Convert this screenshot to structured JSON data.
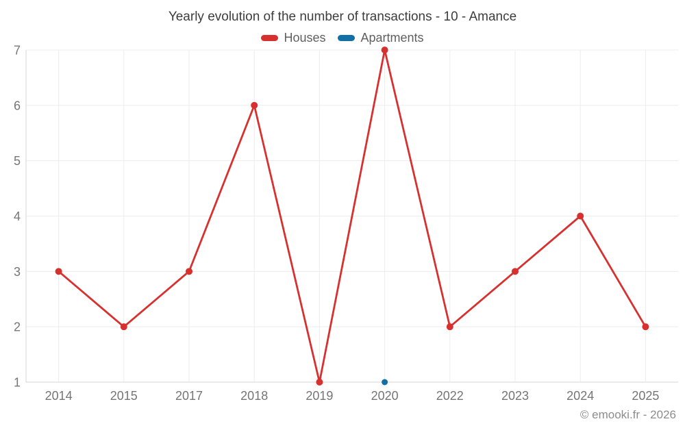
{
  "chart_data": {
    "type": "line",
    "title": "Yearly evolution of the number of transactions - 10 - Amance",
    "categories": [
      "2014",
      "2015",
      "2017",
      "2018",
      "2019",
      "2020",
      "2022",
      "2023",
      "2024",
      "2025"
    ],
    "series": [
      {
        "name": "Houses",
        "color": "#d7312f",
        "values": [
          3,
          2,
          3,
          6,
          1,
          7,
          2,
          3,
          4,
          2
        ]
      },
      {
        "name": "Apartments",
        "color": "#1270a6",
        "values": [
          null,
          null,
          null,
          null,
          null,
          1,
          null,
          null,
          null,
          null
        ]
      }
    ],
    "ylim": [
      1,
      7
    ],
    "yticks": [
      1,
      2,
      3,
      4,
      5,
      6,
      7
    ],
    "xlabel": "",
    "ylabel": "",
    "grid": true,
    "legend_position": "top",
    "colors": {
      "gridline": "#ececec",
      "axis_line": "#d6d6d6",
      "tick_label": "#757575",
      "title_text": "#3d3d3d",
      "legend_text": "#5f5f5f",
      "watermark_text": "#8c8c8c"
    },
    "watermark": "© emooki.fr - 2026"
  }
}
